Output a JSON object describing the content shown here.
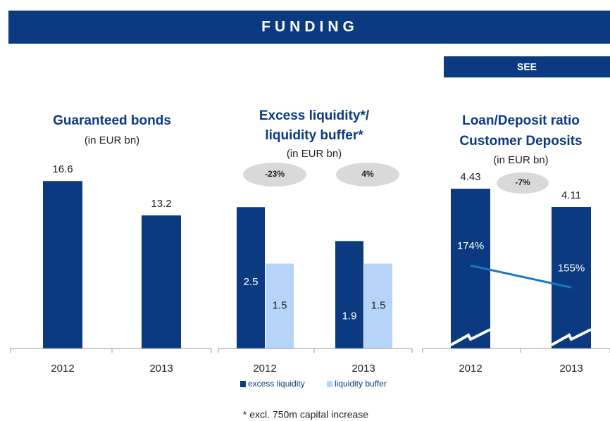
{
  "header": {
    "title": "FUNDING",
    "tab": "SEE"
  },
  "footnote": "* excl. 750m capital increase",
  "chart_data": [
    {
      "type": "bar",
      "title": [
        "Guaranteed bonds"
      ],
      "subtitle": "(in EUR bn)",
      "categories": [
        "2012",
        "2013"
      ],
      "values": [
        16.6,
        13.2
      ],
      "color": "#0b3a80",
      "ylim": [
        0,
        18.5
      ]
    },
    {
      "type": "bar",
      "title": [
        "Excess liquidity*/",
        "liquidity buffer*"
      ],
      "subtitle": "(in EUR bn)",
      "categories": [
        "2012",
        "2013"
      ],
      "series": [
        {
          "name": "excess liquidity",
          "color": "#0b3a80",
          "values": [
            2.5,
            1.9
          ]
        },
        {
          "name": "liquidity buffer",
          "color": "#b6d4f7",
          "values": [
            1.5,
            1.5
          ]
        }
      ],
      "annotations": [
        "-23%",
        "4%"
      ],
      "ylim": [
        0,
        3.3
      ]
    },
    {
      "type": "combo",
      "title": [
        "Loan/Deposit ratio",
        "Customer Deposits"
      ],
      "subtitle": "(in EUR bn)",
      "categories": [
        "2012",
        "2013"
      ],
      "series": [
        {
          "name": "Customer Deposits",
          "color": "#0b3a80",
          "values": [
            4.43,
            4.11
          ]
        },
        {
          "name": "Loan/Deposit ratio",
          "color": "#1a78c2",
          "values": [
            174,
            155
          ],
          "value_labels": [
            "174%",
            "155%"
          ],
          "axis": "y2"
        }
      ],
      "annotations": [
        "-7%"
      ],
      "ylim": [
        1.63,
        4.9
      ],
      "y2lim": [
        102,
        264
      ]
    }
  ]
}
